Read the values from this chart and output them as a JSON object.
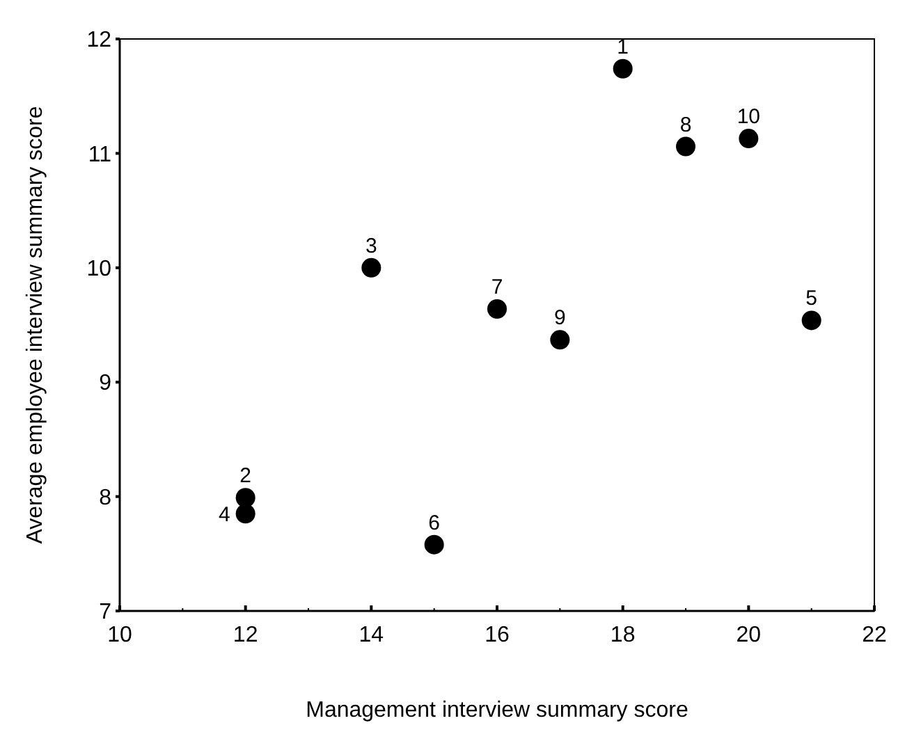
{
  "chart_data": {
    "type": "scatter",
    "xlabel": "Management interview summary score",
    "ylabel": "Average employee interview summary score",
    "x": [
      18,
      12,
      14,
      12,
      21,
      15,
      16,
      19,
      17,
      20
    ],
    "values": [
      11.74,
      7.99,
      10.0,
      7.85,
      9.54,
      7.58,
      9.64,
      11.06,
      9.37,
      11.13
    ],
    "color": "#000000",
    "marker": "circle",
    "grid": false,
    "xlim": [
      10,
      22
    ],
    "ylim": [
      7,
      12
    ],
    "xticks": [
      10,
      {
        "value": 11,
        "label": null
      },
      12,
      {
        "value": 13,
        "label": null
      },
      14,
      {
        "value": 15,
        "label": null
      },
      16,
      {
        "value": 17,
        "label": null
      },
      18,
      {
        "value": 19,
        "label": null
      },
      20,
      {
        "value": 21,
        "label": null
      },
      22
    ],
    "yticks": [
      7,
      8,
      9,
      10,
      11,
      12
    ],
    "annotations": [
      {
        "text": "1",
        "x": 18,
        "y": 11.74
      },
      {
        "text": "2",
        "x": 12,
        "y": 7.99
      },
      {
        "text": "3",
        "x": 14,
        "y": 10.0
      },
      {
        "text": "4",
        "x": 12,
        "y": 7.85
      },
      {
        "text": "5",
        "x": 21,
        "y": 9.54
      },
      {
        "text": "6",
        "x": 15,
        "y": 7.58
      },
      {
        "text": "7",
        "x": 16,
        "y": 9.64
      },
      {
        "text": "8",
        "x": 19,
        "y": 11.06
      },
      {
        "text": "9",
        "x": 17,
        "y": 9.37
      },
      {
        "text": "10",
        "x": 20,
        "y": 11.13
      }
    ]
  }
}
